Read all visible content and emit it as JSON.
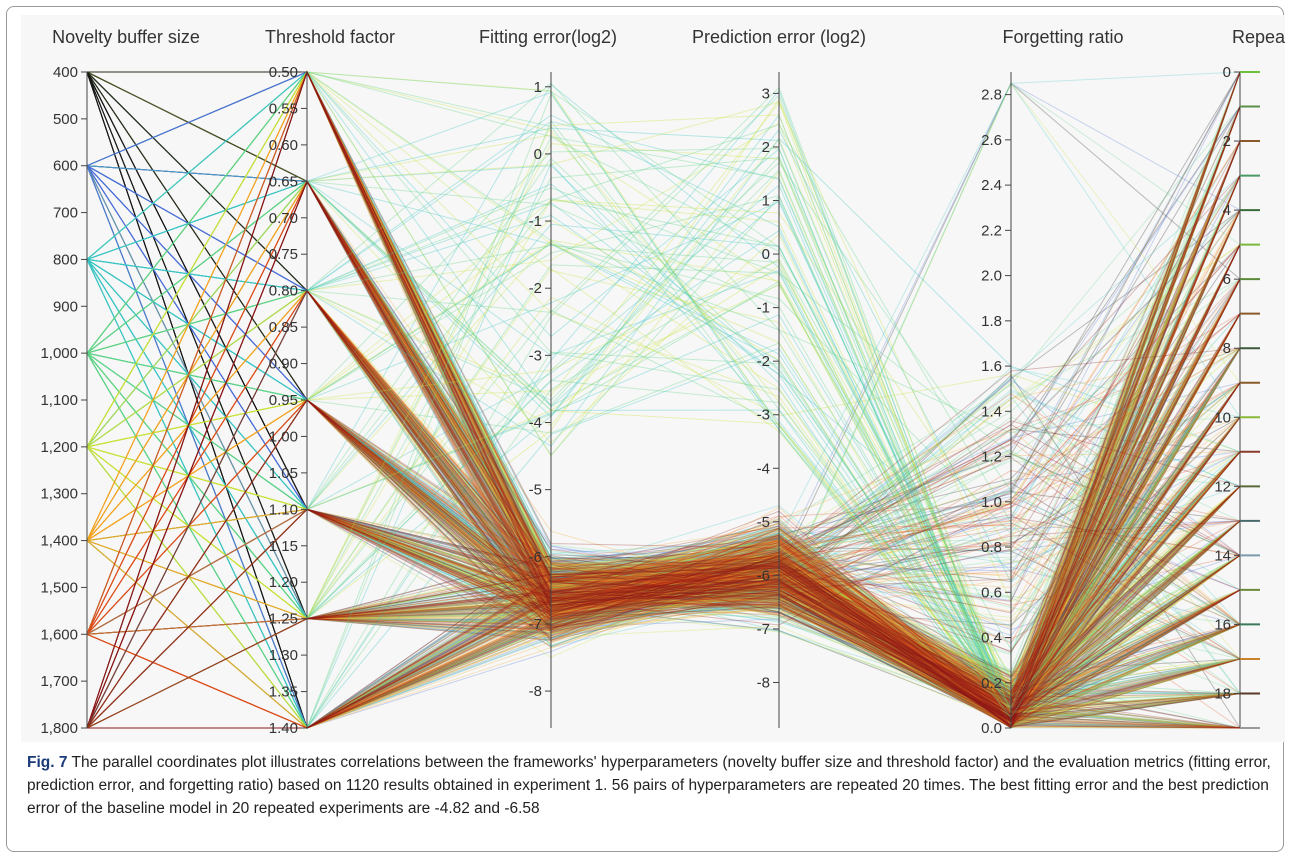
{
  "figure": {
    "label": "Fig. 7",
    "caption": " The parallel coordinates plot illustrates correlations between the frameworks' hyperparameters (novelty buffer size and threshold factor) and the evaluation metrics (fitting error, prediction error, and forgetting ratio) based on 1120 results obtained in experiment 1. 56 pairs of hyperparameters are repeated 20 times. The best fitting error and the best prediction error of the baseline model in 20 repeated experiments are -4.82 and -6.58"
  },
  "chart_data": {
    "type": "parallel_coordinates",
    "n_results": 1120,
    "n_hyperparameter_pairs": 56,
    "repeats_per_pair": 20,
    "baseline": {
      "best_fitting_error": -4.82,
      "best_prediction_error": -6.58
    },
    "axes": [
      {
        "key": "buffer",
        "label": "Novelty buffer size",
        "range": [
          400,
          1800
        ],
        "inverted": true,
        "ticks": [
          400,
          500,
          600,
          700,
          800,
          900,
          1000,
          1100,
          1200,
          1300,
          1400,
          1500,
          1600,
          1700,
          1800
        ],
        "tick_labels": [
          "400",
          "500",
          "600",
          "700",
          "800",
          "900",
          "1,000",
          "1,100",
          "1,200",
          "1,300",
          "1,400",
          "1,500",
          "1,600",
          "1,700",
          "1,800"
        ],
        "values": [
          400,
          600,
          800,
          1000,
          1200,
          1400,
          1600,
          1800
        ],
        "tick_side": "left"
      },
      {
        "key": "threshold",
        "label": "Threshold factor",
        "range": [
          0.5,
          1.4
        ],
        "inverted": true,
        "ticks": [
          0.5,
          0.55,
          0.6,
          0.65,
          0.7,
          0.75,
          0.8,
          0.85,
          0.9,
          0.95,
          1.0,
          1.05,
          1.1,
          1.15,
          1.2,
          1.25,
          1.3,
          1.35,
          1.4
        ],
        "tick_labels": [
          "0.50",
          "0.55",
          "0.60",
          "0.65",
          "0.70",
          "0.75",
          "0.80",
          "0.85",
          "0.90",
          "0.95",
          "1.00",
          "1.05",
          "1.10",
          "1.15",
          "1.20",
          "1.25",
          "1.30",
          "1.35",
          "1.40"
        ],
        "values": [
          0.5,
          0.65,
          0.8,
          0.95,
          1.1,
          1.25,
          1.4
        ],
        "tick_side": "left"
      },
      {
        "key": "fitting",
        "label": "Fitting error(log2)",
        "range": [
          -8.55,
          1.22
        ],
        "inverted": false,
        "ticks": [
          1,
          0,
          -1,
          -2,
          -3,
          -4,
          -5,
          -6,
          -7,
          -8
        ],
        "tick_labels": [
          "1",
          "0",
          "-1",
          "-2",
          "-3",
          "-4",
          "-5",
          "-6",
          "-7",
          "-8"
        ],
        "tick_side": "left"
      },
      {
        "key": "prediction",
        "label": "Prediction error (log2)",
        "range": [
          -8.85,
          3.4
        ],
        "inverted": false,
        "ticks": [
          3,
          2,
          1,
          0,
          -1,
          -2,
          -3,
          -4,
          -5,
          -6,
          -7,
          -8
        ],
        "tick_labels": [
          "3",
          "2",
          "1",
          "0",
          "-1",
          "-2",
          "-3",
          "-4",
          "-5",
          "-6",
          "-7",
          "-8"
        ],
        "tick_side": "left"
      },
      {
        "key": "forgetting",
        "label": "Forgetting ratio",
        "range": [
          0.0,
          2.9
        ],
        "inverted": false,
        "ticks": [
          2.8,
          2.6,
          2.4,
          2.2,
          2.0,
          1.8,
          1.6,
          1.4,
          1.2,
          1.0,
          0.8,
          0.6,
          0.4,
          0.2,
          0.0
        ],
        "tick_labels": [
          "2.8",
          "2.6",
          "2.4",
          "2.2",
          "2.0",
          "1.8",
          "1.6",
          "1.4",
          "1.2",
          "1.0",
          "0.8",
          "0.6",
          "0.4",
          "0.2",
          "0.0"
        ],
        "tick_side": "left"
      },
      {
        "key": "repeat",
        "label": "Repeat",
        "range": [
          0,
          19
        ],
        "inverted": true,
        "ticks": [
          0,
          2,
          4,
          6,
          8,
          10,
          12,
          14,
          16,
          18
        ],
        "tick_labels": [
          "0",
          "2",
          "4",
          "6",
          "8",
          "10",
          "12",
          "14",
          "16",
          "18"
        ],
        "values": [
          0,
          1,
          2,
          3,
          4,
          5,
          6,
          7,
          8,
          9,
          10,
          11,
          12,
          13,
          14,
          15,
          16,
          17,
          18,
          19
        ],
        "tick_side": "left"
      }
    ],
    "color_by": "buffer",
    "buffer_colors": {
      "400": "#1a1a1a",
      "600": "#4a6fd8",
      "800": "#3cc6c4",
      "1000": "#5fd38a",
      "1200": "#c9e33a",
      "1400": "#f5a623",
      "1600": "#e04e1b",
      "1800": "#8b1a1a"
    },
    "repeat_colors": [
      "#6fbf3a",
      "#5e8f4a",
      "#8a5a2a",
      "#4a9a6a",
      "#3a6a3a",
      "#7ab83a",
      "#5a8a3a",
      "#8a5a2a",
      "#3a5a3a",
      "#8a5a2a",
      "#8ab83a",
      "#8a3a2a",
      "#5a6a3a",
      "#4a6a6a",
      "#7a9aaa",
      "#6a8a3a",
      "#3a7a5a",
      "#c8832a",
      "#5a3a2a",
      "#9a9a9a"
    ],
    "grid": false,
    "legend": "none"
  }
}
